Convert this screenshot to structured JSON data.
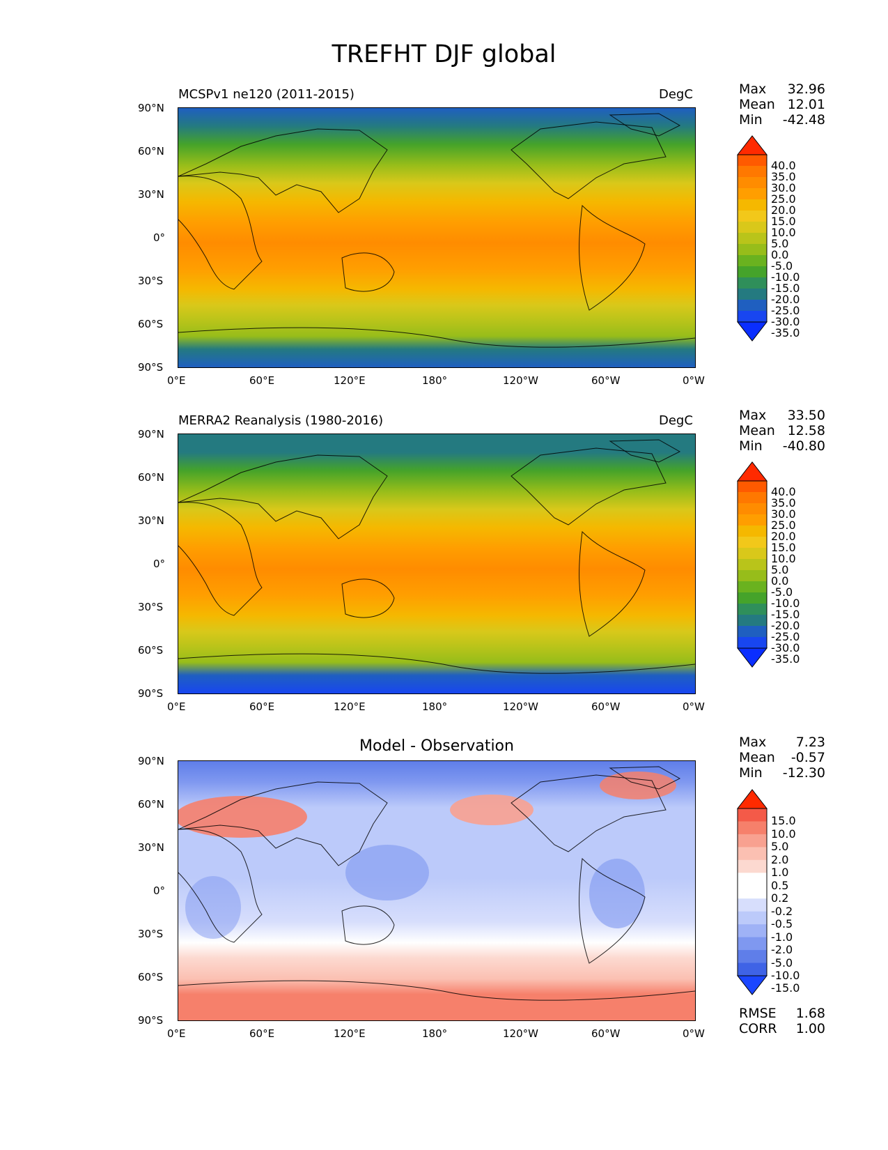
{
  "figure": {
    "title": "TREFHT DJF global"
  },
  "axes": {
    "lon_ticks": [
      "0°E",
      "60°E",
      "120°E",
      "180°",
      "120°W",
      "60°W",
      "0°W"
    ],
    "lat_ticks": [
      "90°N",
      "60°N",
      "30°N",
      "0°",
      "30°S",
      "60°S",
      "90°S"
    ]
  },
  "panels": [
    {
      "left_title": "MCSPv1 ne120 (2011-2015)",
      "right_title": "DegC",
      "stats": {
        "max_label": "Max",
        "max": "32.96",
        "mean_label": "Mean",
        "mean": "12.01",
        "min_label": "Min",
        "min": "-42.48"
      },
      "colorbar_labels": [
        "40.0",
        "35.0",
        "30.0",
        "25.0",
        "20.0",
        "15.0",
        "10.0",
        "5.0",
        "0.0",
        "-5.0",
        "-10.0",
        "-15.0",
        "-20.0",
        "-25.0",
        "-30.0",
        "-35.0"
      ]
    },
    {
      "left_title": "MERRA2 Reanalysis (1980-2016)",
      "right_title": "DegC",
      "stats": {
        "max_label": "Max",
        "max": "33.50",
        "mean_label": "Mean",
        "mean": "12.58",
        "min_label": "Min",
        "min": "-40.80"
      },
      "colorbar_labels": [
        "40.0",
        "35.0",
        "30.0",
        "25.0",
        "20.0",
        "15.0",
        "10.0",
        "5.0",
        "0.0",
        "-5.0",
        "-10.0",
        "-15.0",
        "-20.0",
        "-25.0",
        "-30.0",
        "-35.0"
      ]
    },
    {
      "center_title": "Model - Observation",
      "stats": {
        "max_label": "Max",
        "max": "7.23",
        "mean_label": "Mean",
        "mean": "-0.57",
        "min_label": "Min",
        "min": "-12.30"
      },
      "colorbar_labels": [
        "15.0",
        "10.0",
        "5.0",
        "2.0",
        "1.0",
        "0.5",
        "0.2",
        "-0.2",
        "-0.5",
        "-1.0",
        "-2.0",
        "-5.0",
        "-10.0",
        "-15.0"
      ],
      "metrics": {
        "rmse_label": "RMSE",
        "rmse": "1.68",
        "corr_label": "CORR",
        "corr": "1.00"
      }
    }
  ],
  "colors": {
    "temperature_scale": [
      "#ff2a00",
      "#ff5a00",
      "#ff7800",
      "#ff8c00",
      "#ff9e00",
      "#f5b800",
      "#f2c81a",
      "#d9c81a",
      "#b9c41a",
      "#97bd1a",
      "#6ab21f",
      "#45a32a",
      "#2f8f5a",
      "#247a80",
      "#1f5fc0",
      "#1846f0",
      "#0a2eff"
    ],
    "difference_scale": [
      "#ff2a00",
      "#f45a48",
      "#f6806b",
      "#f8a190",
      "#fbc0b2",
      "#fcd9d0",
      "#ffffff",
      "#ffffff",
      "#d7defc",
      "#bccafa",
      "#9fb2f6",
      "#7f98f0",
      "#5f7ee9",
      "#3f63e6",
      "#1b46ff"
    ]
  }
}
